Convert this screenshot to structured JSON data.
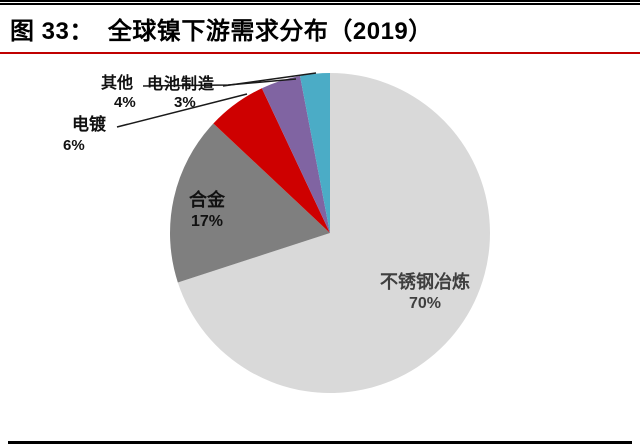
{
  "header": {
    "figure_label": "图 33：",
    "title": "全球镍下游需求分布（2019）"
  },
  "chart_data": {
    "type": "pie",
    "title": "全球镍下游需求分布（2019）",
    "unit": "%",
    "direction": "clockwise",
    "start_angle_deg": 0,
    "legend": "none",
    "segments": [
      {
        "label": "不锈钢冶炼",
        "value": 70,
        "pct_text": "70%",
        "color": "#D9D9D9",
        "label_style": "inside"
      },
      {
        "label": "合金",
        "value": 17,
        "pct_text": "17%",
        "color": "#7F7F7F",
        "label_style": "inside"
      },
      {
        "label": "电镀",
        "value": 6,
        "pct_text": "6%",
        "color": "#CE0000",
        "label_style": "outside"
      },
      {
        "label": "其他",
        "value": 4,
        "pct_text": "4%",
        "color": "#8064A2",
        "label_style": "outside"
      },
      {
        "label": "电池制造",
        "value": 3,
        "pct_text": "3%",
        "color": "#4BACC6",
        "label_style": "outside"
      }
    ]
  },
  "colors": {
    "red_rule": "#C00000",
    "black_rule": "#000000",
    "leader_line": "#1a1a1a",
    "title_text": "#000000"
  }
}
